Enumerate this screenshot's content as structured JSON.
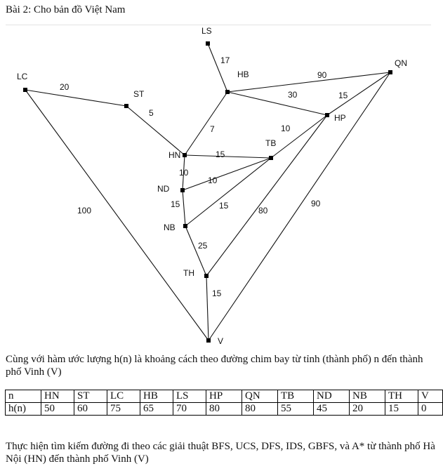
{
  "title": "Bài 2: Cho bản đồ Việt Nam",
  "map": {
    "nodes": [
      {
        "id": "LS",
        "label": "LS"
      },
      {
        "id": "LC",
        "label": "LC"
      },
      {
        "id": "ST",
        "label": "ST"
      },
      {
        "id": "HB",
        "label": "HB"
      },
      {
        "id": "QN",
        "label": "QN"
      },
      {
        "id": "HP",
        "label": "HP"
      },
      {
        "id": "HN",
        "label": "HN"
      },
      {
        "id": "TB",
        "label": "TB"
      },
      {
        "id": "ND",
        "label": "ND"
      },
      {
        "id": "NB",
        "label": "NB"
      },
      {
        "id": "TH",
        "label": "TH"
      },
      {
        "id": "V",
        "label": "V"
      }
    ],
    "edges": [
      {
        "from": "LS",
        "to": "HB",
        "weight": "17"
      },
      {
        "from": "LC",
        "to": "ST",
        "weight": "20"
      },
      {
        "from": "ST",
        "to": "HN",
        "weight": "5"
      },
      {
        "from": "HB",
        "to": "QN",
        "weight": "90"
      },
      {
        "from": "HB",
        "to": "HP",
        "weight": "30"
      },
      {
        "from": "HP",
        "to": "QN",
        "weight": "15"
      },
      {
        "from": "HB",
        "to": "HN",
        "weight": "7"
      },
      {
        "from": "HP",
        "to": "TB",
        "weight": "10"
      },
      {
        "from": "HN",
        "to": "TB",
        "weight": "15"
      },
      {
        "from": "HN",
        "to": "ND",
        "weight": "10"
      },
      {
        "from": "ND",
        "to": "TB",
        "weight": "10"
      },
      {
        "from": "ND",
        "to": "NB",
        "weight": "15"
      },
      {
        "from": "NB",
        "to": "TB",
        "weight": "15"
      },
      {
        "from": "LC",
        "to": "V",
        "weight": "100"
      },
      {
        "from": "HP",
        "to": "TH",
        "weight": "80"
      },
      {
        "from": "QN",
        "to": "V",
        "weight": "90"
      },
      {
        "from": "NB",
        "to": "TH",
        "weight": "25"
      },
      {
        "from": "TH",
        "to": "V",
        "weight": "15"
      }
    ]
  },
  "description": "Cùng với hàm ước lượng h(n) là khoảng cách theo đường chim bay từ tỉnh (thành phố) n đến thành phố Vinh (V)",
  "heuristic_table": {
    "header": [
      "n",
      "HN",
      "ST",
      "LC",
      "HB",
      "LS",
      "HP",
      "QN",
      "TB",
      "ND",
      "NB",
      "TH",
      "V"
    ],
    "values": [
      "h(n)",
      "50",
      "60",
      "75",
      "65",
      "70",
      "80",
      "80",
      "55",
      "45",
      "20",
      "15",
      "0"
    ]
  },
  "task": "Thực hiện tìm kiếm đường đi theo các giải thuật BFS, UCS, DFS, IDS, GBFS, và A* từ thành phố Hà Nội (HN) đến thành phố Vinh (V)"
}
